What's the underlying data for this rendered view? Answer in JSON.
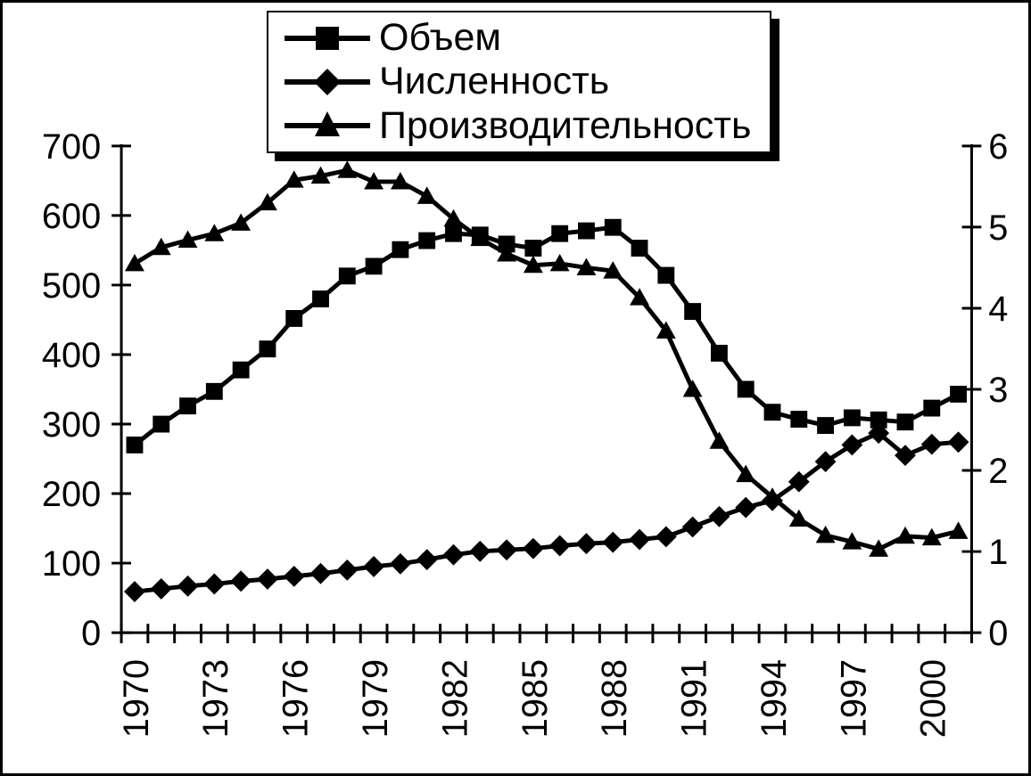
{
  "chart_data": {
    "type": "line",
    "title": "",
    "xlabel": "",
    "ylabel_left": "",
    "ylabel_right": "",
    "grid": false,
    "legend_position": "top-center-overlay-with-shadow",
    "background_color": "#ffffff",
    "foreground_color": "#000000",
    "x": [
      1970,
      1971,
      1972,
      1973,
      1974,
      1975,
      1976,
      1977,
      1978,
      1979,
      1980,
      1981,
      1982,
      1983,
      1984,
      1985,
      1986,
      1987,
      1988,
      1989,
      1990,
      1991,
      1992,
      1993,
      1994,
      1995,
      1996,
      1997,
      1998,
      1999,
      2000,
      2001
    ],
    "x_tick_label_years": [
      1970,
      1973,
      1976,
      1979,
      1982,
      1985,
      1988,
      1991,
      1994,
      1997,
      2000
    ],
    "left_axis": {
      "min": 0,
      "max": 700,
      "tick_step": 100,
      "tick_labels": [
        "0",
        "100",
        "200",
        "300",
        "400",
        "500",
        "600",
        "700"
      ]
    },
    "right_axis": {
      "min": 0,
      "max": 6,
      "tick_step": 1,
      "tick_labels": [
        "0",
        "1",
        "2",
        "3",
        "4",
        "5",
        "6"
      ]
    },
    "series": [
      {
        "name": "Объем",
        "marker": "square",
        "axis": "left",
        "color": "#000000",
        "values": [
          270,
          300,
          326,
          347,
          378,
          408,
          452,
          480,
          513,
          527,
          551,
          564,
          574,
          572,
          559,
          553,
          574,
          578,
          583,
          553,
          514,
          462,
          402,
          350,
          317,
          307,
          298,
          309,
          306,
          303,
          323,
          343
        ]
      },
      {
        "name": "Численность",
        "marker": "diamond",
        "axis": "left",
        "color": "#000000",
        "values": [
          59,
          63,
          67,
          70,
          74,
          77,
          81,
          85,
          90,
          95,
          99,
          105,
          112,
          117,
          119,
          121,
          125,
          128,
          130,
          134,
          138,
          152,
          167,
          180,
          190,
          217,
          246,
          270,
          287,
          255,
          271,
          274
        ]
      },
      {
        "name": "Производительность",
        "marker": "triangle",
        "axis": "right",
        "color": "#000000",
        "values": [
          4.55,
          4.75,
          4.84,
          4.92,
          5.05,
          5.3,
          5.58,
          5.63,
          5.7,
          5.56,
          5.56,
          5.38,
          5.1,
          4.86,
          4.67,
          4.53,
          4.55,
          4.5,
          4.46,
          4.13,
          3.72,
          3.0,
          2.36,
          1.95,
          1.67,
          1.4,
          1.2,
          1.12,
          1.03,
          1.19,
          1.17,
          1.25
        ]
      }
    ]
  }
}
